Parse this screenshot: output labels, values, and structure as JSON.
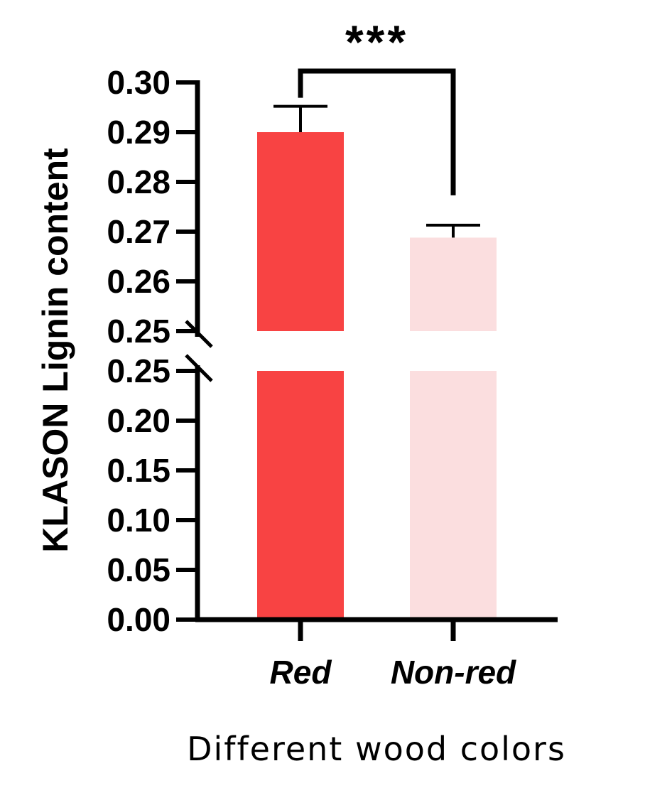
{
  "chart_data": {
    "type": "bar",
    "categories": [
      "Red",
      "Non-red"
    ],
    "values": [
      0.29,
      0.2688
    ],
    "errors": [
      0.0052,
      0.0025
    ],
    "colors": [
      "#f84343",
      "#fbdedf"
    ],
    "xlabel": "Different wood colors",
    "ylabel": "KLASON Lignin content",
    "axis_break": true,
    "lower_segment": {
      "ylim": [
        0.0,
        0.25
      ],
      "ticks": [
        "0.00",
        "0.05",
        "0.10",
        "0.15",
        "0.20",
        "0.25"
      ]
    },
    "upper_segment": {
      "ylim": [
        0.25,
        0.3
      ],
      "ticks": [
        "0.25",
        "0.26",
        "0.27",
        "0.28",
        "0.29",
        "0.30"
      ]
    },
    "significance": {
      "label": "***",
      "between": [
        "Red",
        "Non-red"
      ]
    },
    "grid": false,
    "legend": "none"
  }
}
